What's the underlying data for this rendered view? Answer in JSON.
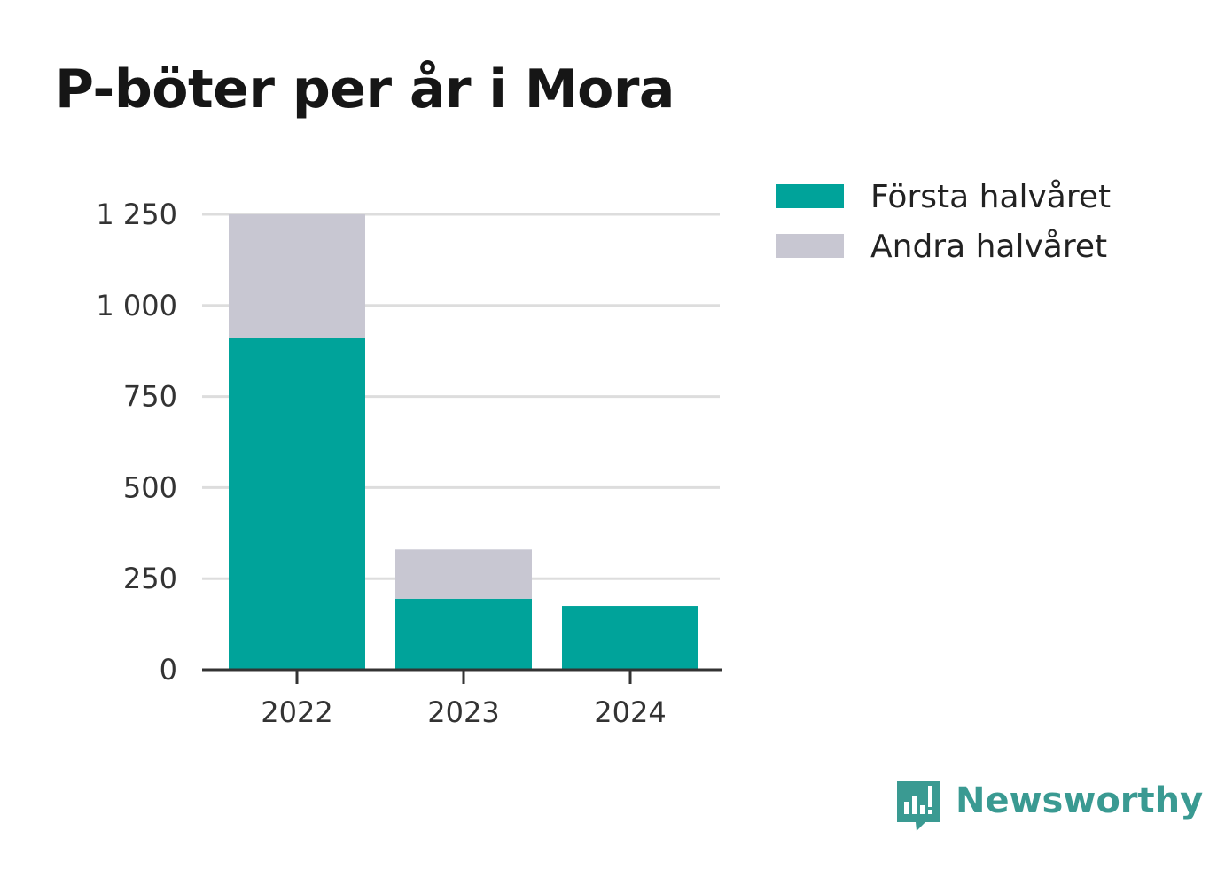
{
  "chart_data": {
    "type": "bar",
    "stacked": true,
    "title": "P-böter per år i Mora",
    "xlabel": "",
    "ylabel": "",
    "categories": [
      "2022",
      "2023",
      "2024"
    ],
    "series": [
      {
        "name": "Första halvåret",
        "color": "#00a39a",
        "values": [
          910,
          195,
          175
        ]
      },
      {
        "name": "Andra halvåret",
        "color": "#c8c7d2",
        "values": [
          340,
          135,
          0
        ]
      }
    ],
    "ylim": [
      0,
      1250
    ],
    "yticks": [
      {
        "value": 0,
        "label": "0"
      },
      {
        "value": 250,
        "label": "250"
      },
      {
        "value": 500,
        "label": "500"
      },
      {
        "value": 750,
        "label": "750"
      },
      {
        "value": 1000,
        "label": "1 000"
      },
      {
        "value": 1250,
        "label": "1 250"
      }
    ],
    "grid": true,
    "legend_position": "top-right"
  },
  "brand": {
    "name": "Newsworthy",
    "icon": "newsworthy-logo-icon",
    "color": "#3a9a92"
  },
  "colors": {
    "axis": "#333333",
    "grid": "#dddddd"
  }
}
